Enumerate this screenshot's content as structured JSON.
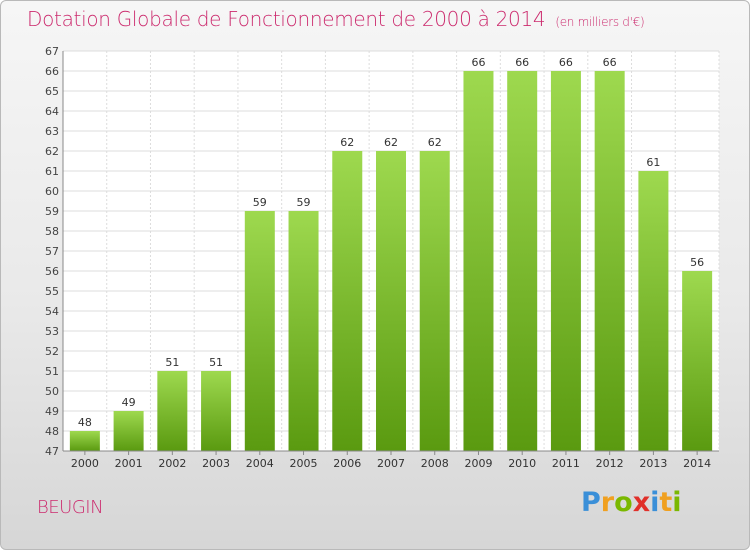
{
  "title": "Dotation Globale de Fonctionnement de 2000 à 2014",
  "unit_note": "(en milliers d'€)",
  "commune": "BEUGIN",
  "logo": {
    "letters": [
      "P",
      "r",
      "o",
      "x",
      "i",
      "t",
      "i"
    ],
    "colors": [
      "#3a8fd8",
      "#f0a020",
      "#7ab800",
      "#e0302a",
      "#3a8fd8",
      "#f0a020",
      "#7ab800"
    ]
  },
  "colors": {
    "bar_top": "#9ed94f",
    "bar_bottom": "#5a9a10",
    "title": "#cc2b6e"
  },
  "chart_data": {
    "type": "bar",
    "categories": [
      "2000",
      "2001",
      "2002",
      "2003",
      "2004",
      "2005",
      "2006",
      "2007",
      "2008",
      "2009",
      "2010",
      "2011",
      "2012",
      "2013",
      "2014"
    ],
    "values": [
      48,
      49,
      51,
      51,
      59,
      59,
      62,
      62,
      62,
      66,
      66,
      66,
      66,
      61,
      56
    ],
    "ylim": [
      47,
      67
    ],
    "yticks": [
      47,
      48,
      49,
      50,
      51,
      52,
      53,
      54,
      55,
      56,
      57,
      58,
      59,
      60,
      61,
      62,
      63,
      64,
      65,
      66,
      67
    ],
    "grid": true
  }
}
